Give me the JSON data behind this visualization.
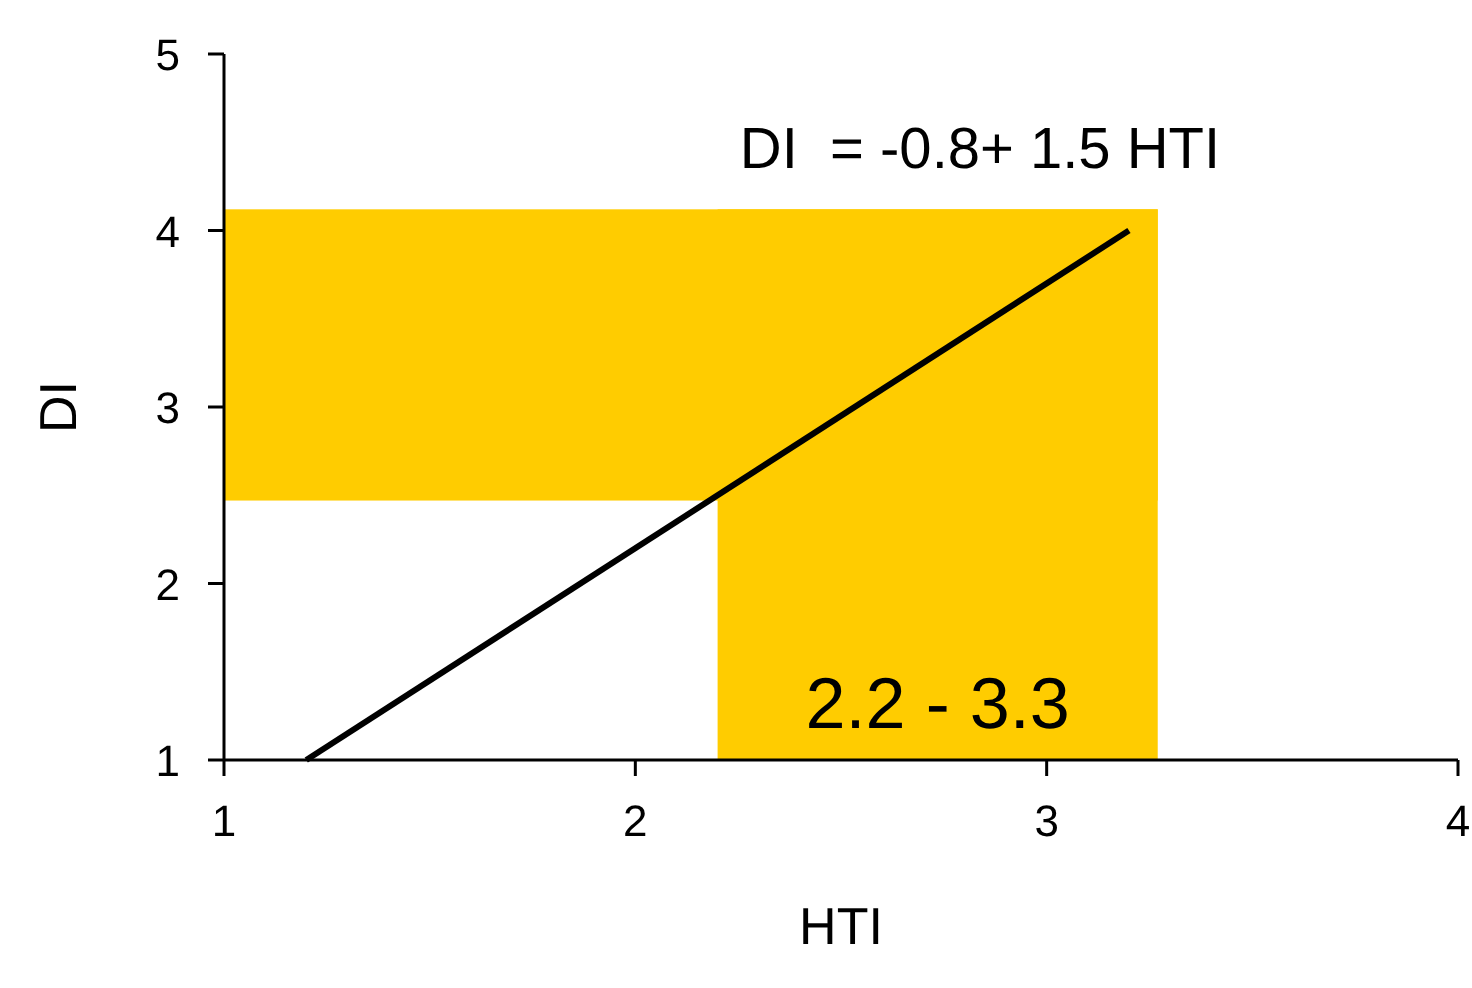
{
  "chart_data": {
    "type": "line",
    "xlabel": "HTI",
    "ylabel": "DI",
    "x": [
      1.2,
      3.2
    ],
    "series": [
      {
        "color": "#000000",
        "values": [
          1,
          4
        ]
      }
    ],
    "xlim": [
      1,
      4
    ],
    "xticks": [
      1,
      2,
      3,
      4
    ],
    "ylim": [
      1,
      5
    ],
    "yticks": [
      1,
      2,
      3,
      4,
      5
    ],
    "grid": false,
    "marker": "none",
    "line_style": "solid",
    "bands": [
      {
        "axis": "x",
        "from": 2.2,
        "to": 3.27,
        "label": "2.2 - 3.3",
        "color": "#ffcc00"
      },
      {
        "axis": "y",
        "from": 2.47,
        "to": 4.12,
        "label": null,
        "color": "#ffcc00"
      }
    ],
    "annotations": [
      "DI  = -0.8+ 1.5 HTI"
    ]
  }
}
